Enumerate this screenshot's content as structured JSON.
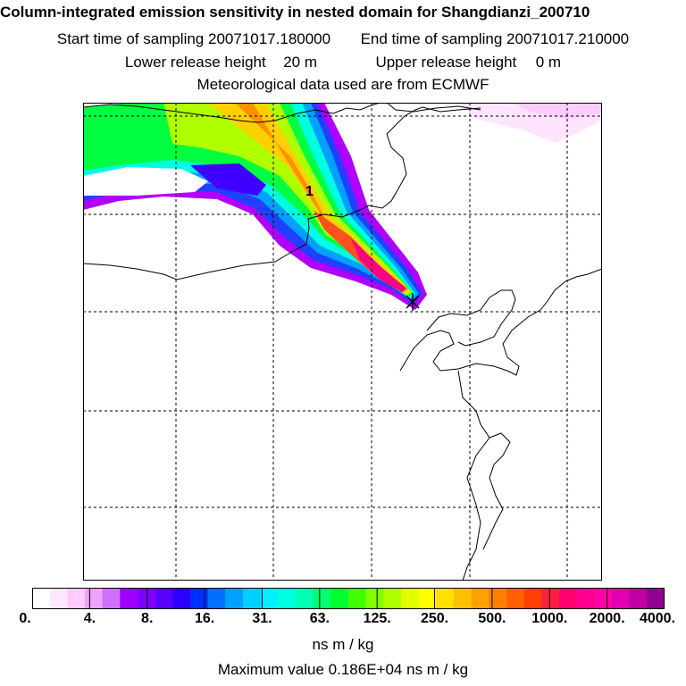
{
  "header": {
    "title": "Column-integrated emission sensitivity in nested domain for Shangdianzi_200710",
    "start_label": "Start time of sampling",
    "start_value": "20071017.180000",
    "end_label": "End time of sampling",
    "end_value": "20071017.210000",
    "lower_label": "Lower release height",
    "lower_value": "20 m",
    "upper_label": "Upper release height",
    "upper_value": "0 m",
    "met_line": "Meteorological data used are from ECMWF"
  },
  "map": {
    "trajectory_label": "1",
    "receptor_marker": "station-cross-icon",
    "colors": {
      "frame": "#000000",
      "grid": "#000000",
      "coast": "#000000"
    }
  },
  "legend": {
    "ticks": [
      "0.",
      "4.",
      "8.",
      "16.",
      "31.",
      "63.",
      "125.",
      "250.",
      "500.",
      "1000.",
      "2000.",
      "4000."
    ],
    "units": "ns m / kg",
    "max_label": "Maximum value",
    "max_value": "0.186E+04",
    "max_units": "ns m / kg",
    "colors": [
      "#ffffff",
      "#ffe8ff",
      "#ffccff",
      "#f0a0ff",
      "#d070ff",
      "#a000ff",
      "#8000ff",
      "#5a00ff",
      "#2a00ff",
      "#0030ff",
      "#0070ff",
      "#00a0ff",
      "#00d0ff",
      "#00f0ff",
      "#00ffe0",
      "#00ffb0",
      "#00ff70",
      "#00ff30",
      "#40ff00",
      "#80ff00",
      "#b0ff00",
      "#e0ff00",
      "#ffff00",
      "#ffe000",
      "#ffc000",
      "#ffa000",
      "#ff8000",
      "#ff6000",
      "#ff4000",
      "#ff2040",
      "#ff0070",
      "#ff0090",
      "#ff00a8",
      "#e000b0",
      "#c000a0",
      "#900090"
    ]
  }
}
